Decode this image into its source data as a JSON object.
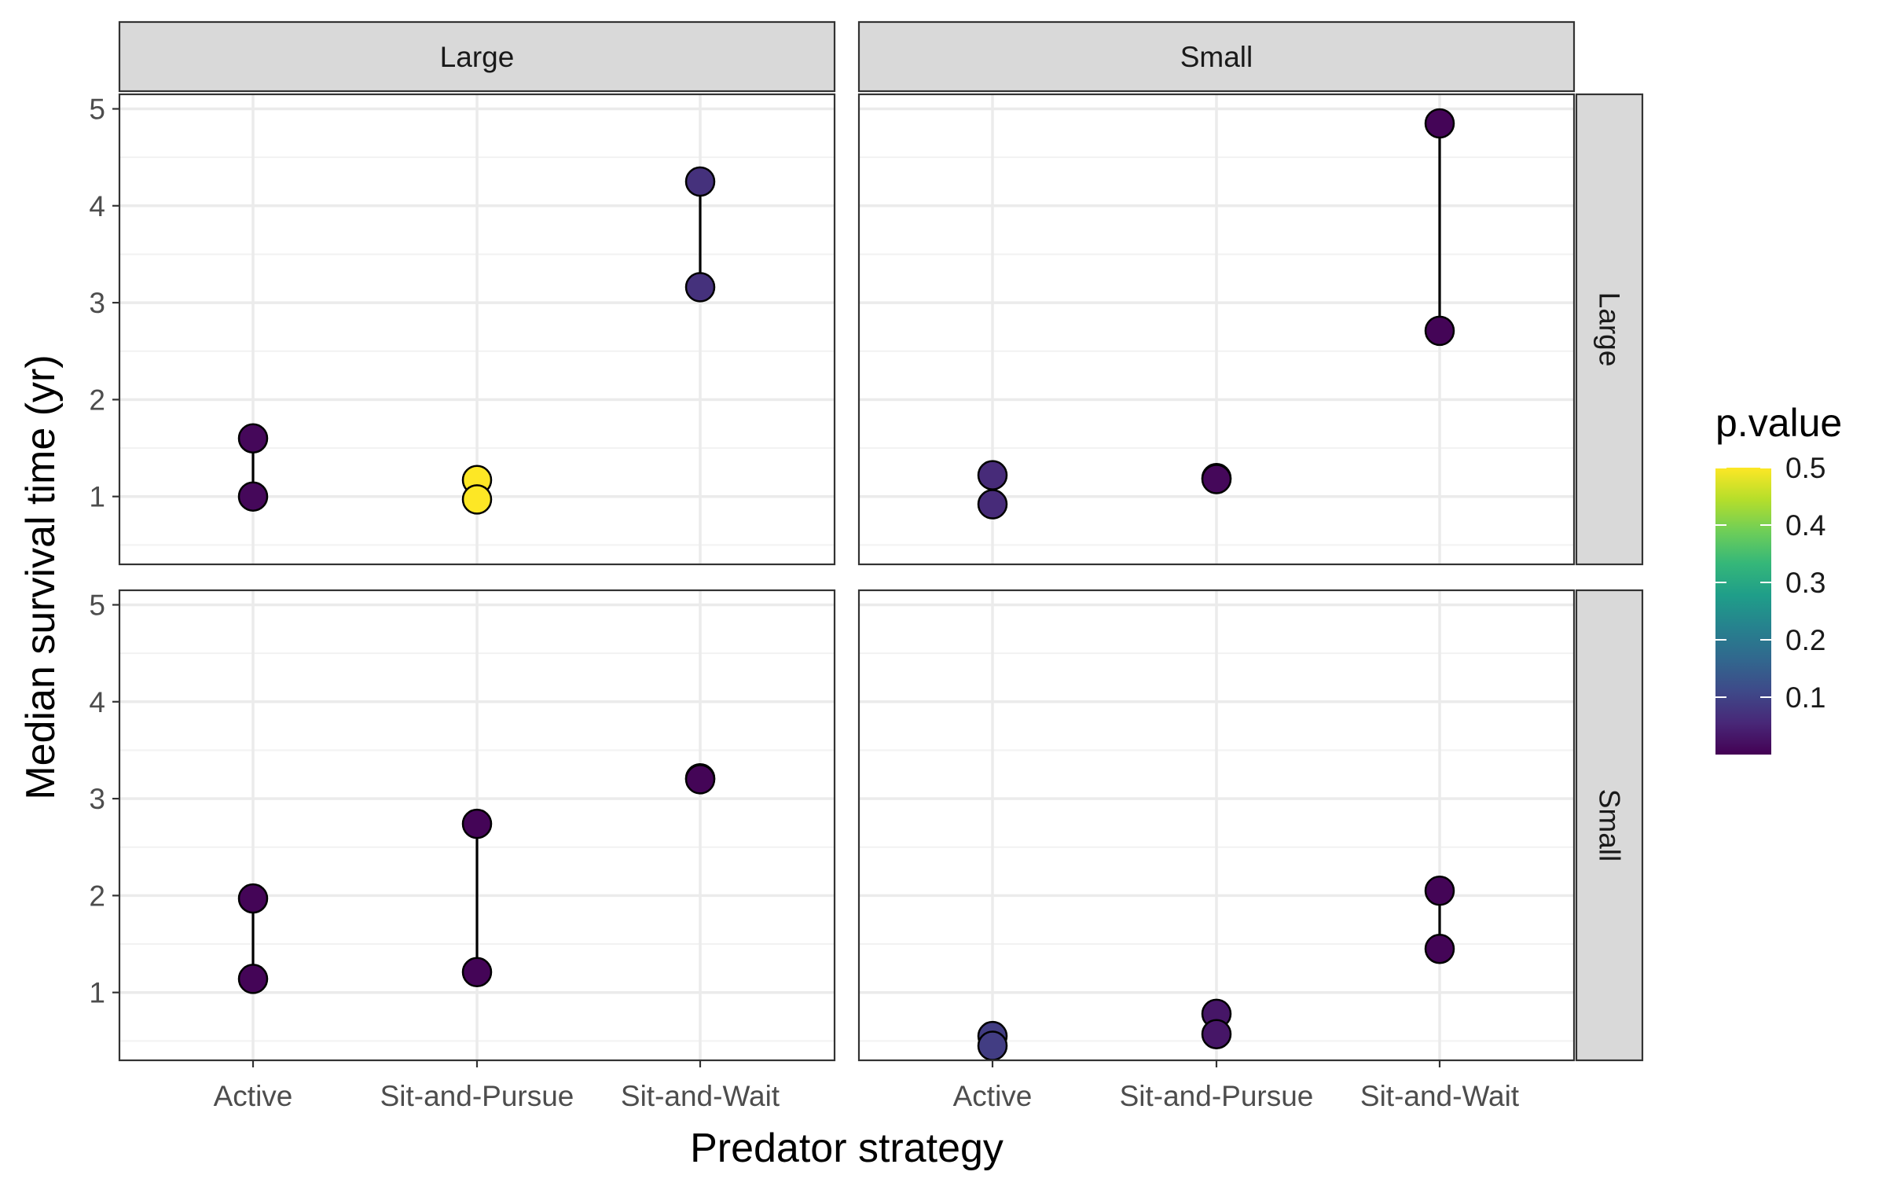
{
  "chart_data": {
    "type": "dumbbell",
    "xlabel": "Predator strategy",
    "ylabel": "Median survival time (yr)",
    "categories": [
      "Active",
      "Sit-and-Pursue",
      "Sit-and-Wait"
    ],
    "ylim": [
      0.3,
      5.15
    ],
    "yticks": [
      1,
      2,
      3,
      4,
      5
    ],
    "col_facets": [
      "Large",
      "Small"
    ],
    "row_facets": [
      "Large",
      "Small"
    ],
    "colorbar": {
      "title": "p.value",
      "range": [
        0,
        0.5
      ],
      "ticks": [
        0.1,
        0.2,
        0.3,
        0.4,
        0.5
      ],
      "colors": [
        "#440154",
        "#482878",
        "#3e4a89",
        "#31688e",
        "#26828e",
        "#1f9e89",
        "#35b779",
        "#6ece58",
        "#b5de2b",
        "#fde725"
      ]
    },
    "panels": [
      {
        "col": "Large",
        "row": "Large",
        "pairs": [
          {
            "category": "Active",
            "low": 1.0,
            "high": 1.6,
            "p_value": 0.01
          },
          {
            "category": "Sit-and-Pursue",
            "low": 0.97,
            "high": 1.17,
            "p_value": 0.5
          },
          {
            "category": "Sit-and-Wait",
            "low": 3.16,
            "high": 4.25,
            "p_value": 0.07
          }
        ]
      },
      {
        "col": "Small",
        "row": "Large",
        "pairs": [
          {
            "category": "Active",
            "low": 0.92,
            "high": 1.22,
            "p_value": 0.06
          },
          {
            "category": "Sit-and-Pursue",
            "low": 1.18,
            "high": 1.19,
            "p_value": 0.01
          },
          {
            "category": "Sit-and-Wait",
            "low": 2.71,
            "high": 4.85,
            "p_value": 0.005
          }
        ]
      },
      {
        "col": "Large",
        "row": "Small",
        "pairs": [
          {
            "category": "Active",
            "low": 1.14,
            "high": 1.97,
            "p_value": 0.005
          },
          {
            "category": "Sit-and-Pursue",
            "low": 1.21,
            "high": 2.74,
            "p_value": 0.005
          },
          {
            "category": "Sit-and-Wait",
            "low": 3.2,
            "high": 3.21,
            "p_value": 0.005
          }
        ]
      },
      {
        "col": "Small",
        "row": "Small",
        "pairs": [
          {
            "category": "Active",
            "low": 0.45,
            "high": 0.55,
            "p_value": 0.09
          },
          {
            "category": "Sit-and-Pursue",
            "low": 0.57,
            "high": 0.78,
            "p_value": 0.03
          },
          {
            "category": "Sit-and-Wait",
            "low": 1.45,
            "high": 2.05,
            "p_value": 0.005
          }
        ]
      }
    ]
  }
}
